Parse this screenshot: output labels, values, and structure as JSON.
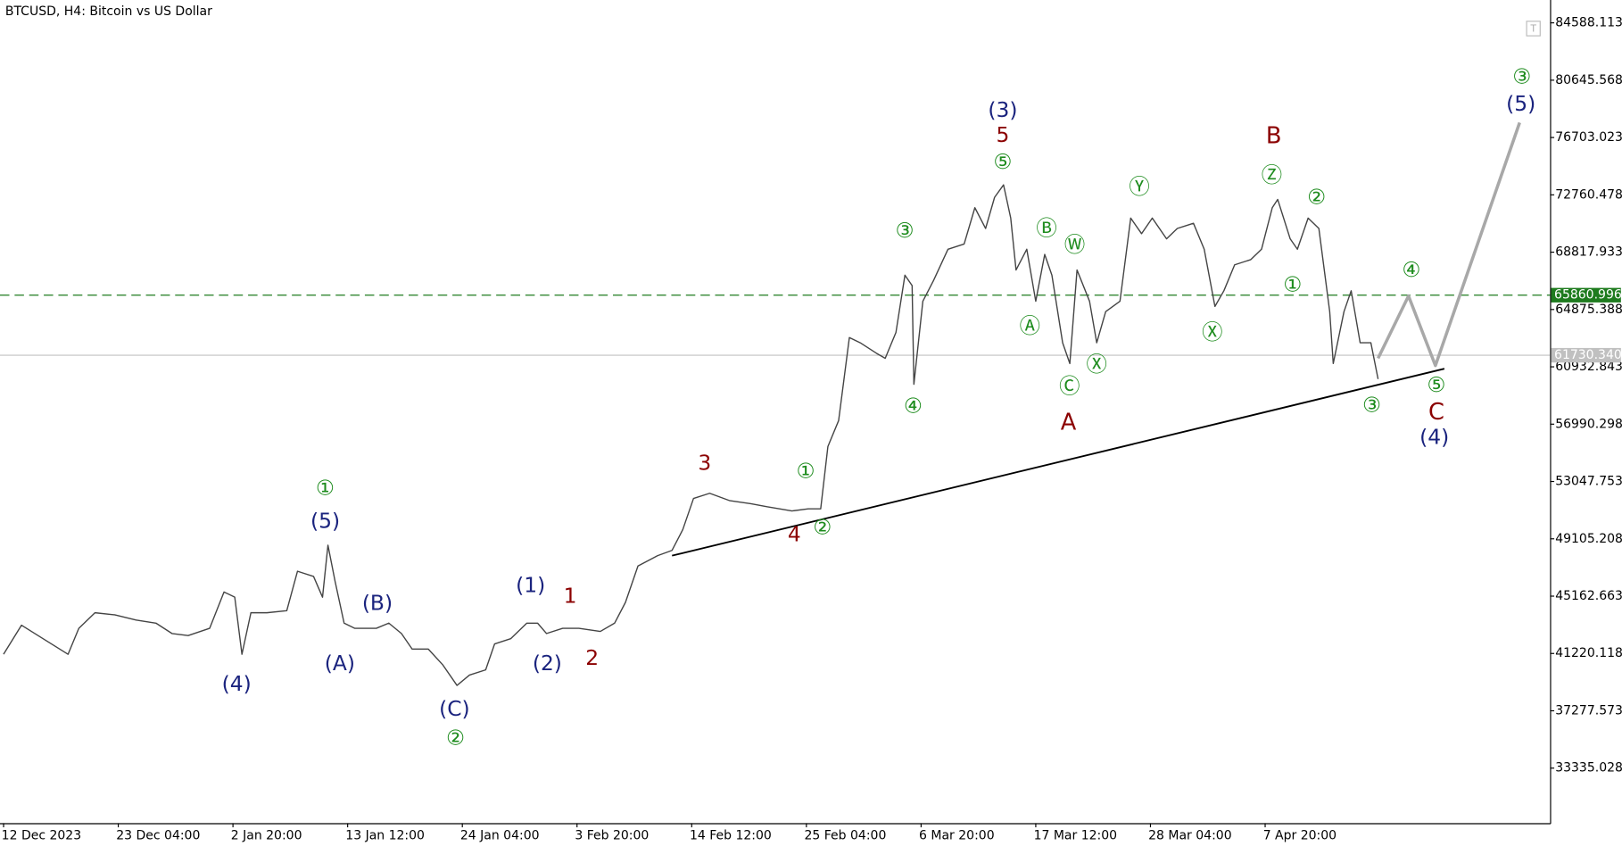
{
  "chart_data": {
    "type": "line",
    "title": "BTCUSD, H4:  Bitcoin vs US Dollar",
    "xlim": [
      -2,
      863
    ],
    "ylim": [
      29550,
      86160
    ],
    "xticks": [
      {
        "value": 0,
        "label": "12 Dec 2023"
      },
      {
        "value": 64,
        "label": "23 Dec 04:00"
      },
      {
        "value": 128,
        "label": "2 Jan 20:00"
      },
      {
        "value": 192,
        "label": "13 Jan 12:00"
      },
      {
        "value": 256,
        "label": "24 Jan 04:00"
      },
      {
        "value": 320,
        "label": "3 Feb 20:00"
      },
      {
        "value": 384,
        "label": "14 Feb 12:00"
      },
      {
        "value": 448,
        "label": "25 Feb 04:00"
      },
      {
        "value": 512,
        "label": "6 Mar 20:00"
      },
      {
        "value": 576,
        "label": "17 Mar 12:00"
      },
      {
        "value": 640,
        "label": "28 Mar 04:00"
      },
      {
        "value": 704,
        "label": "7 Apr 20:00"
      }
    ],
    "yticks": [
      84588.113,
      80645.568,
      76703.023,
      72760.478,
      68817.933,
      64875.388,
      60932.843,
      56990.298,
      53047.753,
      49105.208,
      45162.663,
      41220.118,
      37277.573,
      33335.028
    ],
    "series": [
      {
        "color": "#444444",
        "x": [
          0,
          10,
          22,
          36,
          42,
          51,
          62,
          74,
          85,
          94,
          103,
          115,
          123,
          129,
          133,
          138,
          147,
          158,
          164,
          173,
          178,
          181,
          185,
          190,
          196,
          208,
          215,
          222,
          228,
          237,
          245,
          253,
          260,
          269,
          274,
          283,
          292,
          298,
          303,
          312,
          321,
          333,
          341,
          347,
          354,
          365,
          373,
          379,
          385,
          394,
          405,
          417,
          426,
          440,
          449,
          456,
          460,
          466,
          472,
          478,
          487,
          492,
          498,
          503,
          507,
          508,
          513,
          519,
          527,
          536,
          542,
          548,
          553,
          558,
          562,
          565,
          571,
          576,
          581,
          585,
          591,
          595,
          599,
          606,
          610,
          615,
          623,
          629,
          635,
          641,
          649,
          655,
          664,
          670,
          676,
          681,
          687,
          696,
          702,
          708,
          711,
          718,
          722,
          728,
          734,
          740,
          742,
          748,
          752,
          757,
          763,
          767
        ],
        "values": [
          41165,
          43164,
          42237,
          41165,
          42950,
          44021,
          43879,
          43521,
          43307,
          42593,
          42450,
          42950,
          45450,
          45093,
          41165,
          44021,
          44021,
          44164,
          46878,
          46521,
          45093,
          48664,
          46164,
          43307,
          42950,
          42950,
          43307,
          42593,
          41522,
          41522,
          40450,
          39022,
          39736,
          40093,
          41879,
          42237,
          43307,
          43307,
          42593,
          42950,
          42950,
          42736,
          43307,
          44736,
          47235,
          47950,
          48307,
          49735,
          51878,
          52235,
          51735,
          51521,
          51306,
          51021,
          51163,
          51163,
          55449,
          57234,
          62948,
          62591,
          61876,
          61519,
          63305,
          67233,
          66519,
          59734,
          65447,
          66876,
          69018,
          69376,
          71875,
          70447,
          72589,
          73446,
          71161,
          67590,
          69018,
          65447,
          68661,
          67233,
          62591,
          61162,
          67590,
          65447,
          62591,
          64733,
          65447,
          71161,
          70090,
          71161,
          69733,
          70447,
          70804,
          69018,
          65090,
          66162,
          67947,
          68304,
          69018,
          71875,
          72447,
          69733,
          69018,
          71161,
          70447,
          64733,
          61162,
          64733,
          66162,
          62591,
          62591,
          60091
        ]
      },
      {
        "color": "#000000",
        "x": [
          373,
          804
        ],
        "values": [
          47950,
          60806
        ]
      },
      {
        "color": "#a8a8a8",
        "x": [
          767,
          784,
          799,
          846
        ],
        "values": [
          61519,
          65804,
          61019,
          77732
        ]
      }
    ],
    "hlines": [
      {
        "value": 65860.996,
        "color": "#1e7b1e",
        "dashed": true
      },
      {
        "value": 61730.34,
        "label": "61730.340",
        "color": "#c0c0c0",
        "dashed": false
      }
    ],
    "annotations": [
      {
        "text": "①",
        "color": "#1e8c1e"
      },
      {
        "text": "(5)",
        "color": "#1a237e"
      },
      {
        "text": "(4)",
        "color": "#1a237e"
      },
      {
        "text": "(A)",
        "color": "#1a237e"
      },
      {
        "text": "(B)",
        "color": "#1a237e"
      },
      {
        "text": "(C)",
        "color": "#1a237e"
      },
      {
        "text": "②",
        "color": "#1e8c1e"
      },
      {
        "text": "(1)",
        "color": "#1a237e"
      },
      {
        "text": "(2)",
        "color": "#1a237e"
      },
      {
        "text": "1",
        "color": "#8b0000"
      },
      {
        "text": "2",
        "color": "#8b0000"
      },
      {
        "text": "3",
        "color": "#8b0000"
      },
      {
        "text": "4",
        "color": "#8b0000"
      },
      {
        "text": "②",
        "color": "#1e8c1e"
      },
      {
        "text": "①",
        "color": "#1e8c1e"
      },
      {
        "text": "③",
        "color": "#1e8c1e"
      },
      {
        "text": "④",
        "color": "#1e8c1e"
      },
      {
        "text": "(3)",
        "color": "#1a237e"
      },
      {
        "text": "5",
        "color": "#8b0000"
      },
      {
        "text": "⑤",
        "color": "#1e8c1e"
      },
      {
        "text": "Ⓐ",
        "color": "#1e8c1e"
      },
      {
        "text": "Ⓑ",
        "color": "#1e8c1e"
      },
      {
        "text": "Ⓦ",
        "color": "#1e8c1e"
      },
      {
        "text": "Ⓒ",
        "color": "#1e8c1e"
      },
      {
        "text": "Ⓧ",
        "color": "#1e8c1e"
      },
      {
        "text": "A",
        "color": "#8b0000"
      },
      {
        "text": "Ⓨ",
        "color": "#1e8c1e"
      },
      {
        "text": "Ⓧ",
        "color": "#1e8c1e"
      },
      {
        "text": "B",
        "color": "#8b0000"
      },
      {
        "text": "Ⓩ",
        "color": "#1e8c1e"
      },
      {
        "text": "①",
        "color": "#1e8c1e"
      },
      {
        "text": "②",
        "color": "#1e8c1e"
      },
      {
        "text": "④",
        "color": "#1e8c1e"
      },
      {
        "text": "③",
        "color": "#1e8c1e"
      },
      {
        "text": "⑤",
        "color": "#1e8c1e"
      },
      {
        "text": "C",
        "color": "#8b0000"
      },
      {
        "text": "(4)",
        "color": "#1a237e"
      },
      {
        "text": "③",
        "color": "#1e8c1e"
      },
      {
        "text": "(5)",
        "color": "#1a237e"
      }
    ]
  }
}
